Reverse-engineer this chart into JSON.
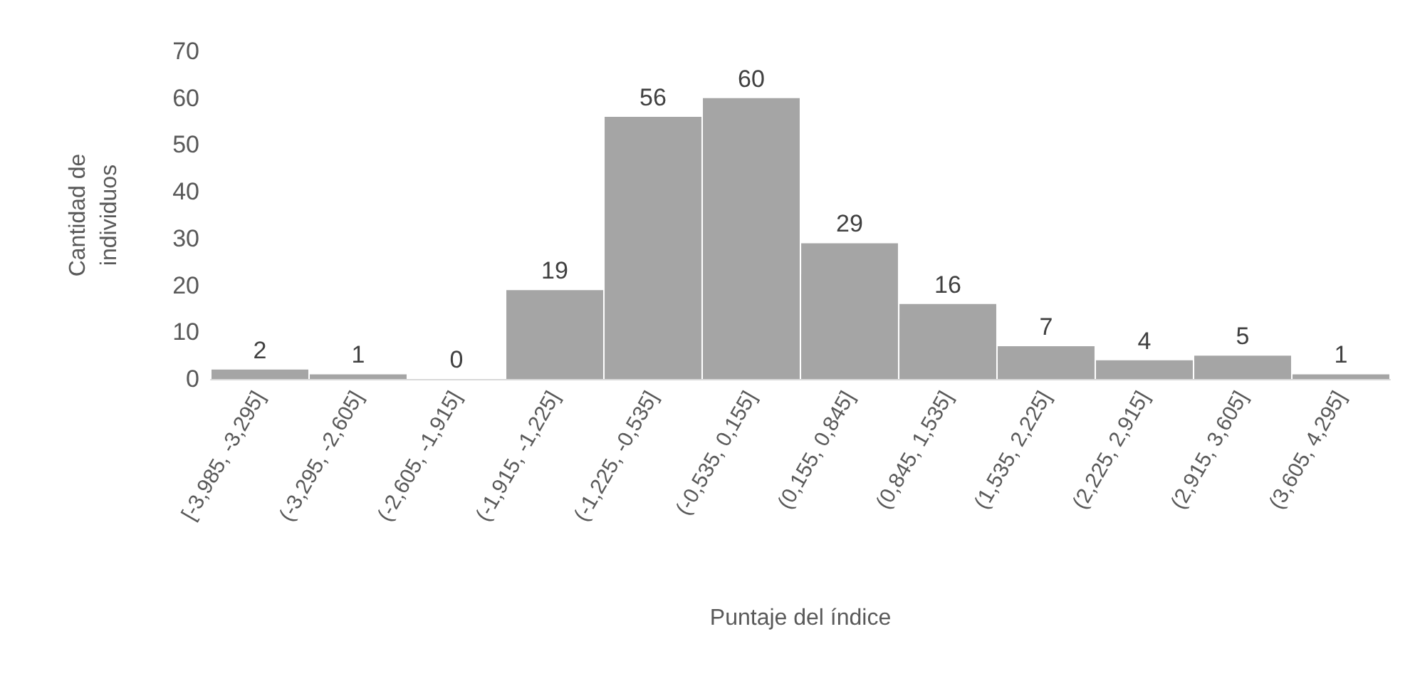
{
  "chart_data": {
    "type": "bar",
    "xlabel": "Puntaje del índice",
    "ylabel": "Cantidad de\nindividuos",
    "categories": [
      "[-3,985, -3,295]",
      "(-3,295, -2,605]",
      "(-2,605, -1,915]",
      "(-1,915, -1,225]",
      "(-1,225, -0,535]",
      "(-0,535, 0,155]",
      "(0,155, 0,845]",
      "(0,845, 1,535]",
      "(1,535, 2,225]",
      "(2,225, 2,915]",
      "(2,915, 3,605]",
      "(3,605, 4,295]"
    ],
    "values": [
      2,
      1,
      0,
      19,
      56,
      60,
      29,
      16,
      7,
      4,
      5,
      1
    ],
    "color": "#a5a5a5",
    "ylim": [
      0,
      70
    ],
    "yticks": [
      0,
      10,
      20,
      30,
      40,
      50,
      60,
      70
    ],
    "grid": false,
    "data_labels": true
  }
}
